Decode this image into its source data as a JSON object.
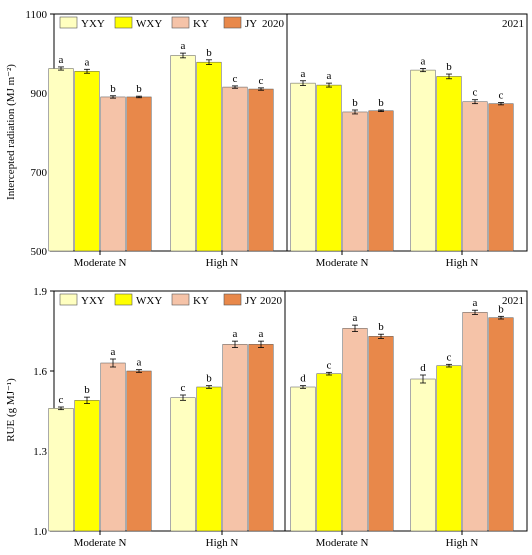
{
  "colors": {
    "YXY": "#ffffc0",
    "WXY": "#ffff00",
    "KY": "#f5c3a8",
    "JY": "#e8884a",
    "axis": "#000000"
  },
  "chart_data": [
    {
      "type": "bar",
      "panel": "top",
      "ylabel": "Intercepted radiation (MJ m⁻²)",
      "ylim": [
        500,
        1100
      ],
      "yticks": [
        "500",
        "700",
        "900",
        "1100"
      ],
      "ytick_values": [
        500,
        700,
        900,
        1100
      ],
      "series_names": [
        "YXY",
        "WXY",
        "KY",
        "JY"
      ],
      "legend_position": "top-left",
      "grid": false,
      "subpanels": [
        {
          "year": "2020",
          "categories": [
            "Moderate N",
            "High N"
          ],
          "series": [
            {
              "name": "YXY",
              "values": [
                962,
                995
              ],
              "errors": [
                4,
                6
              ],
              "letters": [
                "a",
                "a"
              ]
            },
            {
              "name": "WXY",
              "values": [
                955,
                978
              ],
              "errors": [
                5,
                6
              ],
              "letters": [
                "a",
                "b"
              ]
            },
            {
              "name": "KY",
              "values": [
                890,
                915
              ],
              "errors": [
                3,
                3
              ],
              "letters": [
                "b",
                "c"
              ]
            },
            {
              "name": "JY",
              "values": [
                890,
                910
              ],
              "errors": [
                2,
                3
              ],
              "letters": [
                "b",
                "c"
              ]
            }
          ]
        },
        {
          "year": "2021",
          "categories": [
            "Moderate N",
            "High N"
          ],
          "series": [
            {
              "name": "YXY",
              "values": [
                925,
                958
              ],
              "errors": [
                6,
                4
              ],
              "letters": [
                "a",
                "a"
              ]
            },
            {
              "name": "WXY",
              "values": [
                920,
                942
              ],
              "errors": [
                5,
                6
              ],
              "letters": [
                "a",
                "b"
              ]
            },
            {
              "name": "KY",
              "values": [
                852,
                878
              ],
              "errors": [
                5,
                5
              ],
              "letters": [
                "b",
                "c"
              ]
            },
            {
              "name": "JY",
              "values": [
                855,
                873
              ],
              "errors": [
                2,
                3
              ],
              "letters": [
                "b",
                "c"
              ]
            }
          ]
        }
      ]
    },
    {
      "type": "bar",
      "panel": "bottom",
      "ylabel": "RUE (g MJ⁻¹)",
      "ylim": [
        1.0,
        1.9
      ],
      "yticks": [
        "1.0",
        "1.3",
        "1.6",
        "1.9"
      ],
      "ytick_values": [
        1.0,
        1.3,
        1.6,
        1.9
      ],
      "series_names": [
        "YXY",
        "WXY",
        "KY",
        "JY"
      ],
      "legend_position": "top-left",
      "grid": false,
      "subpanels": [
        {
          "year": "2020",
          "categories": [
            "Moderate N",
            "High N"
          ],
          "series": [
            {
              "name": "YXY",
              "values": [
                1.46,
                1.5
              ],
              "errors": [
                0.005,
                0.01
              ],
              "letters": [
                "c",
                "c"
              ]
            },
            {
              "name": "WXY",
              "values": [
                1.49,
                1.54
              ],
              "errors": [
                0.012,
                0.005
              ],
              "letters": [
                "b",
                "b"
              ]
            },
            {
              "name": "KY",
              "values": [
                1.63,
                1.7
              ],
              "errors": [
                0.015,
                0.012
              ],
              "letters": [
                "a",
                "a"
              ]
            },
            {
              "name": "JY",
              "values": [
                1.6,
                1.7
              ],
              "errors": [
                0.005,
                0.012
              ],
              "letters": [
                "a",
                "a"
              ]
            }
          ]
        },
        {
          "year": "2021",
          "categories": [
            "Moderate N",
            "High N"
          ],
          "series": [
            {
              "name": "YXY",
              "values": [
                1.54,
                1.57
              ],
              "errors": [
                0.005,
                0.015
              ],
              "letters": [
                "d",
                "d"
              ]
            },
            {
              "name": "WXY",
              "values": [
                1.59,
                1.62
              ],
              "errors": [
                0.005,
                0.005
              ],
              "letters": [
                "c",
                "c"
              ]
            },
            {
              "name": "KY",
              "values": [
                1.76,
                1.82
              ],
              "errors": [
                0.012,
                0.008
              ],
              "letters": [
                "a",
                "a"
              ]
            },
            {
              "name": "JY",
              "values": [
                1.73,
                1.8
              ],
              "errors": [
                0.008,
                0.005
              ],
              "letters": [
                "b",
                "b"
              ]
            }
          ]
        }
      ]
    }
  ]
}
